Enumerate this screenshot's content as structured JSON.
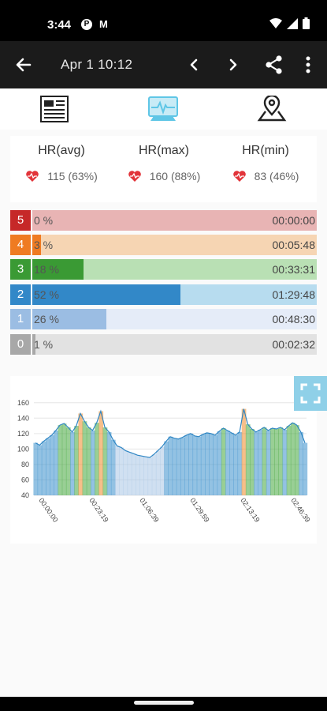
{
  "status_bar": {
    "time": "3:44",
    "icon_p": "P",
    "icon_m": "M"
  },
  "app_bar": {
    "title": "Apr 1 10:12",
    "icons": [
      "back-arrow",
      "chevron-left",
      "chevron-right",
      "share",
      "more-vert"
    ]
  },
  "tabs": [
    {
      "name": "summary",
      "icon": "document-icon"
    },
    {
      "name": "heart-rate",
      "icon": "monitor-icon",
      "active": true
    },
    {
      "name": "map",
      "icon": "map-pin-icon"
    }
  ],
  "hr_stats": [
    {
      "label": "HR(avg)",
      "value": "115 (63%)"
    },
    {
      "label": "HR(max)",
      "value": "160 (88%)"
    },
    {
      "label": "HR(min)",
      "value": "83 (46%)"
    }
  ],
  "zones": [
    {
      "num": "5",
      "pct": "0 %",
      "time": "00:00:00",
      "fraction": 0,
      "dark": "#c62828",
      "light": "#e8b4b4"
    },
    {
      "num": "4",
      "pct": "3 %",
      "time": "00:05:48",
      "fraction": 0.03,
      "dark": "#ef7b22",
      "light": "#f6d5b3"
    },
    {
      "num": "3",
      "pct": "18 %",
      "time": "00:33:31",
      "fraction": 0.18,
      "dark": "#3a9a34",
      "light": "#b9e0b4"
    },
    {
      "num": "2",
      "pct": "52 %",
      "time": "01:29:48",
      "fraction": 0.52,
      "dark": "#3288c8",
      "light": "#b7dcef"
    },
    {
      "num": "1",
      "pct": "26 %",
      "time": "00:48:30",
      "fraction": 0.26,
      "dark": "#9bbde3",
      "light": "#e5ecf8"
    },
    {
      "num": "0",
      "pct": "1 %",
      "time": "00:02:32",
      "fraction": 0.01,
      "dark": "#a8a8a8",
      "light": "#e2e2e2"
    }
  ],
  "chart_data": {
    "type": "area",
    "y_ticks": [
      "160",
      "140",
      "120",
      "100",
      "80",
      "60",
      "40"
    ],
    "ylim": [
      40,
      170
    ],
    "x_ticks": [
      "00:00:00",
      "00:23:19",
      "01:06:39",
      "01:29:59",
      "02:13:19",
      "02:46:39"
    ],
    "series": [
      {
        "values": [
          108,
          105,
          110,
          114,
          118,
          124,
          131,
          133,
          128,
          122,
          130,
          146,
          136,
          128,
          124,
          134,
          149,
          128,
          122,
          112,
          104,
          102,
          98,
          96,
          94,
          92,
          91,
          90,
          89,
          93,
          98,
          103,
          110,
          116,
          114,
          113,
          115,
          118,
          120,
          117,
          116,
          119,
          121,
          120,
          118,
          123,
          127,
          124,
          121,
          118,
          122,
          152,
          132,
          126,
          122,
          125,
          128,
          124,
          127,
          126,
          128,
          125,
          130,
          134,
          131,
          122,
          108
        ]
      }
    ]
  },
  "colors": {
    "appbar": "#1b1b1b",
    "accent": "#8fd0e8"
  }
}
